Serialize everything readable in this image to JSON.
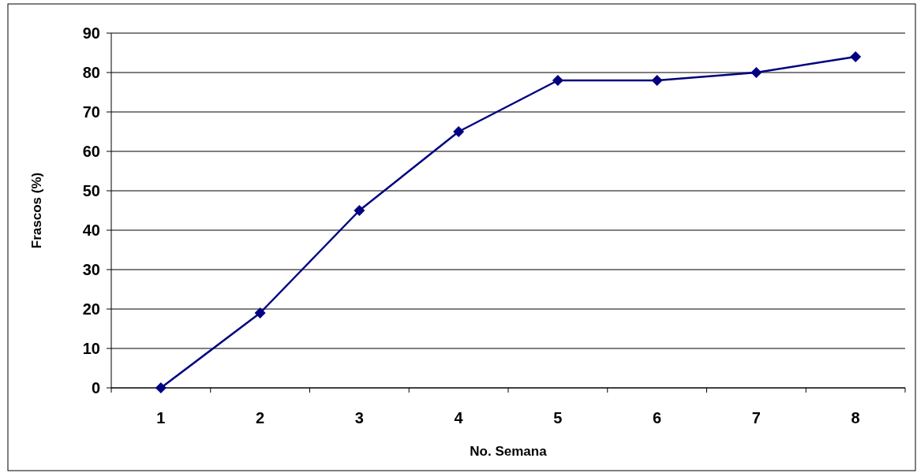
{
  "chart_data": {
    "type": "line",
    "xlabel": "No. Semana",
    "ylabel": "Frascos (%)",
    "categories": [
      "1",
      "2",
      "3",
      "4",
      "5",
      "6",
      "7",
      "8"
    ],
    "series": [
      {
        "color": "#000080",
        "values": [
          0,
          19,
          45,
          65,
          78,
          78,
          80,
          84
        ]
      }
    ],
    "ylim": [
      0,
      90
    ],
    "yticks": [
      0,
      10,
      20,
      30,
      40,
      50,
      60,
      70,
      80,
      90
    ],
    "grid": "y",
    "marker": "diamond",
    "line_style": "solid"
  }
}
